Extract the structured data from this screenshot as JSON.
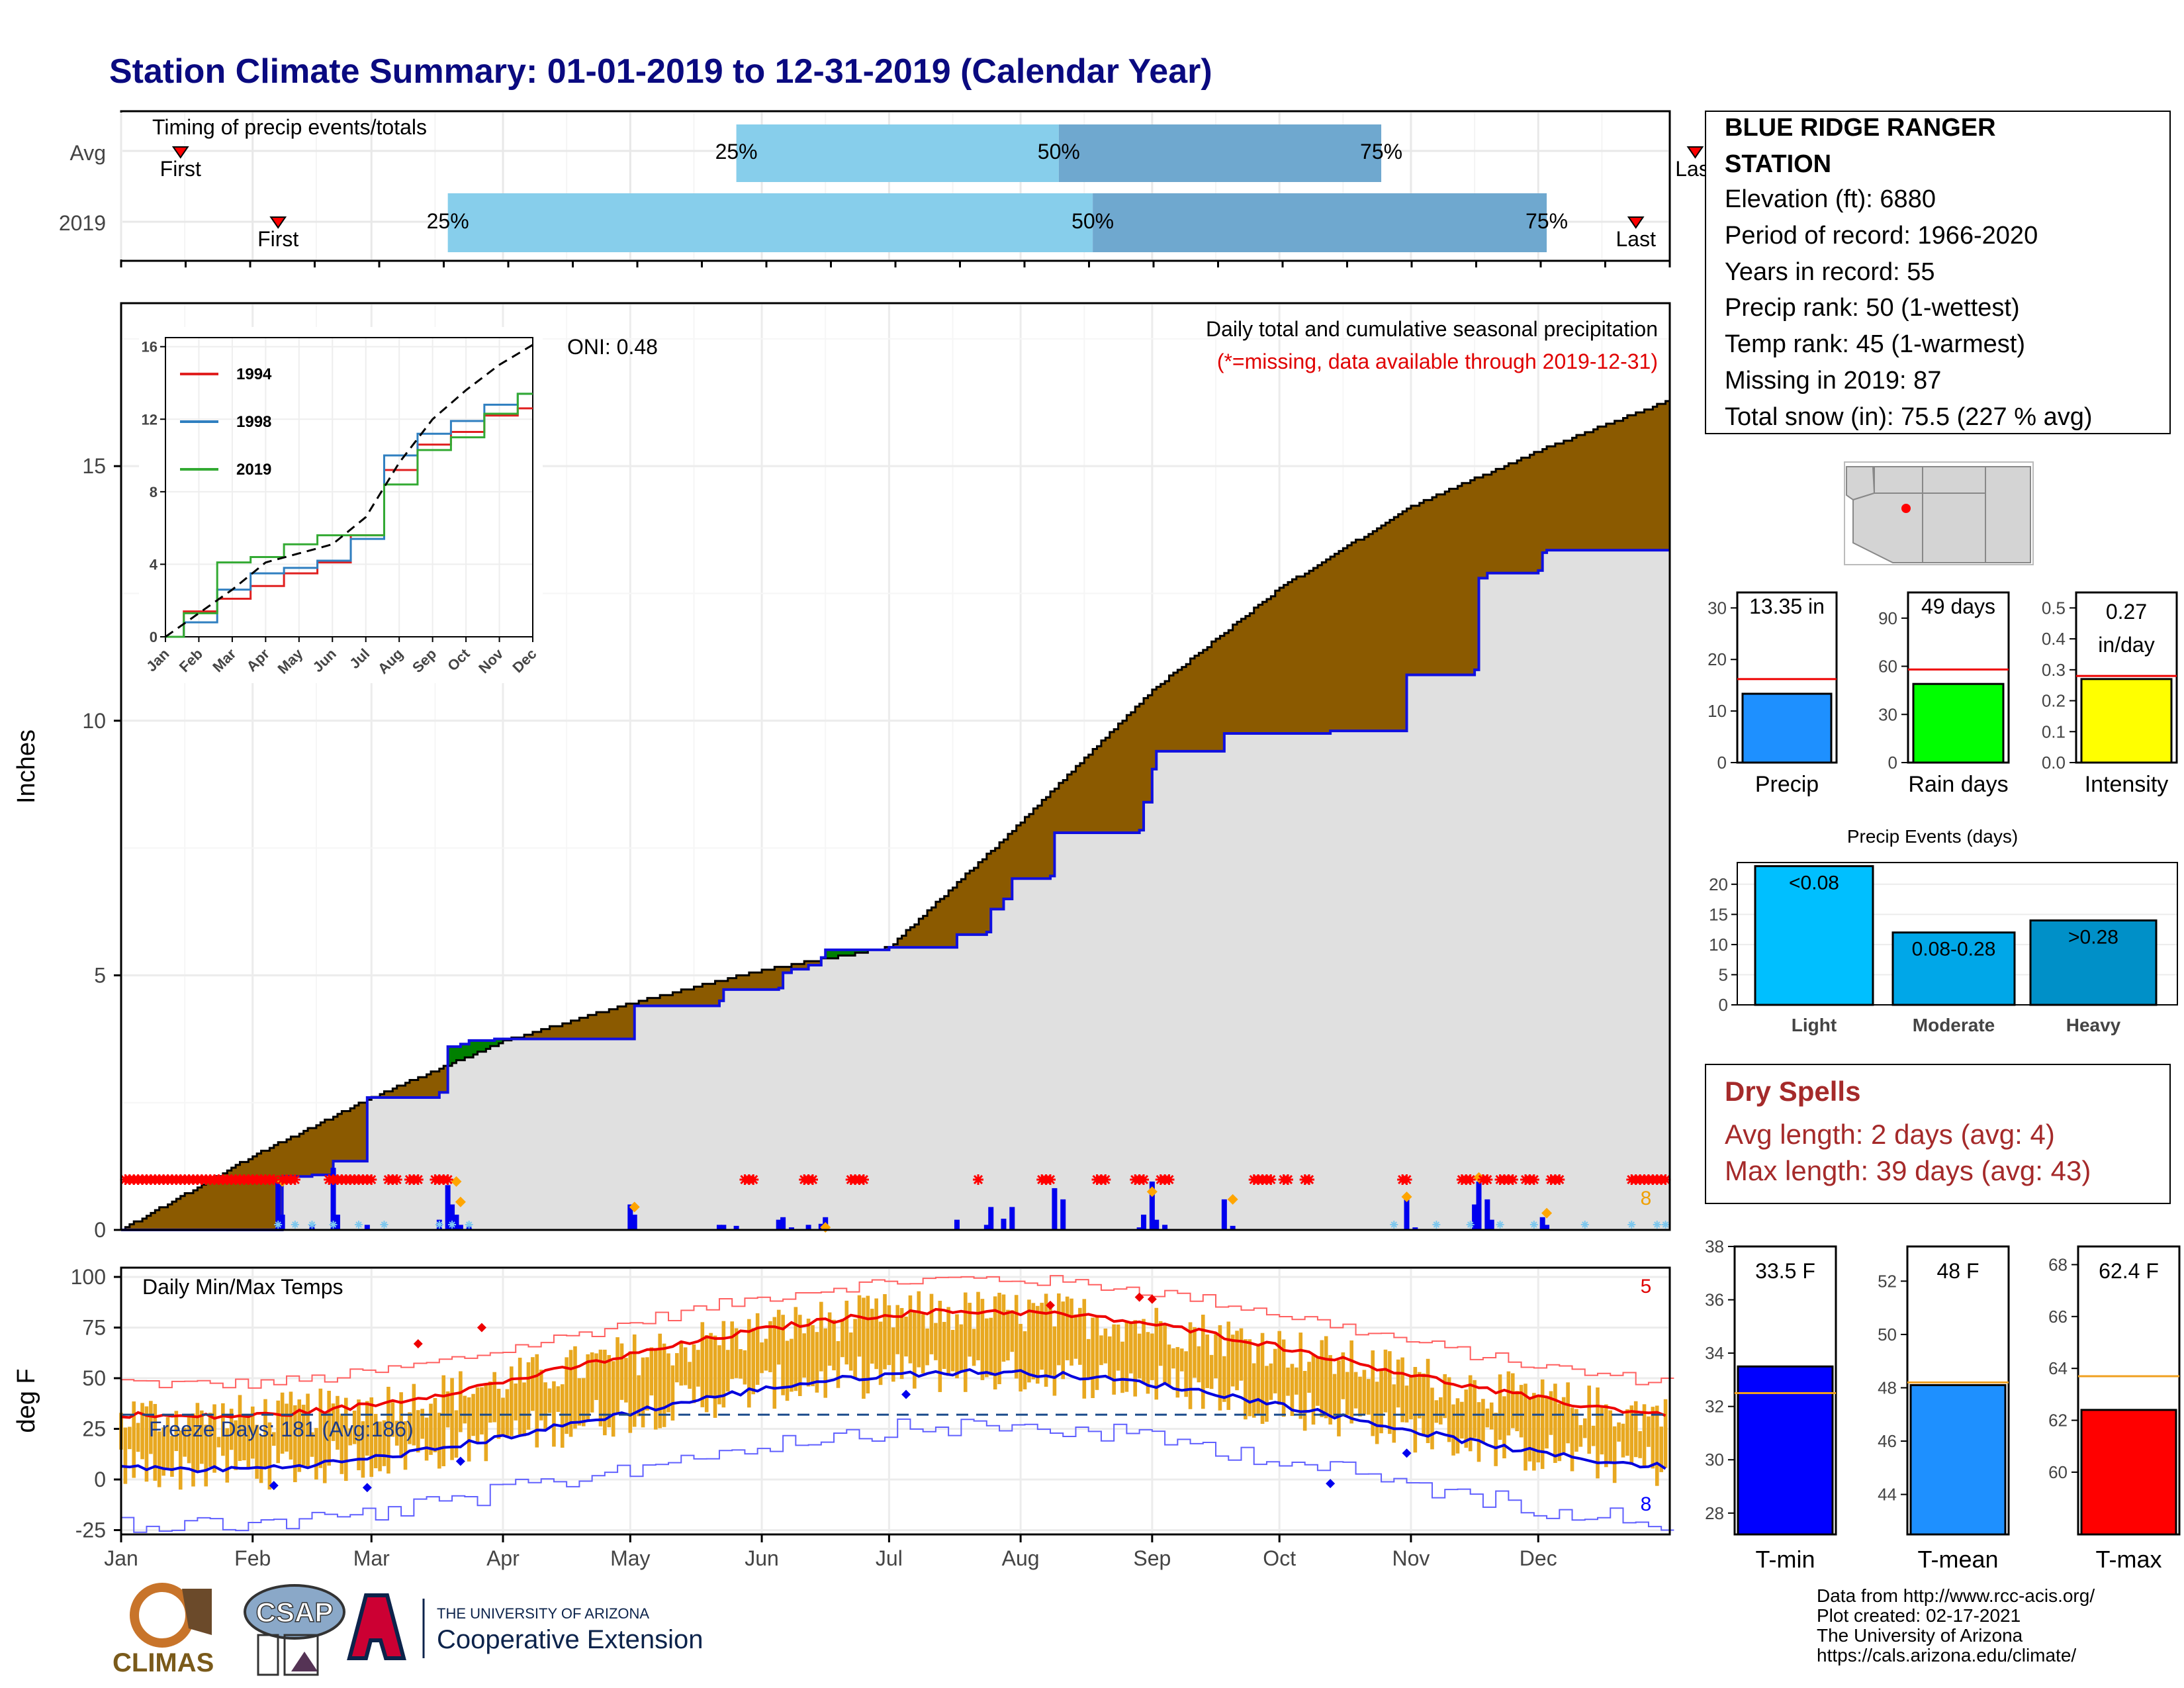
{
  "title": "Station Climate Summary: 01-01-2019 to 12-31-2019 (Calendar Year)",
  "colors": {
    "title": "#0a0a80",
    "cum_fill": "#8b5a00",
    "above_fill": "#008000",
    "avg_area": "#e0e0e0",
    "avg_line": "#1010e0",
    "q_light": "#87ceeb",
    "q_dark": "#6fa8cf",
    "precip_bar": "#1e90ff",
    "raindays_bar": "#00ff00",
    "intensity_bar": "#ffff00",
    "events_bar": "#00bfff",
    "tmin_bar": "#0000ff",
    "tmean_bar": "#1e90ff",
    "tmax_bar": "#ff0000",
    "temp_bar": "#e8a820",
    "dry_spells": "#a52a2a"
  },
  "timing": {
    "title": "Timing of precip events/totals",
    "rows": [
      {
        "label": "Avg",
        "first_label": "First",
        "last_label": "Last",
        "p25": "25%",
        "p50": "50%",
        "p75": "75%",
        "first_doy": 14,
        "q25_doy": 145,
        "q50_doy": 221,
        "q75_doy": 297,
        "last_doy": 371
      },
      {
        "label": "2019",
        "first_label": "First",
        "last_label": "Last",
        "p25": "25%",
        "p50": "50%",
        "p75": "75%",
        "first_doy": 37,
        "q25_doy": 77,
        "q50_doy": 229,
        "q75_doy": 336,
        "last_doy": 357
      }
    ]
  },
  "station": {
    "name_line1": "BLUE RIDGE RANGER",
    "name_line2": "STATION",
    "elevation": "Elevation (ft): 6880",
    "period": "Period of record: 1966-2020",
    "years": "Years in record: 55",
    "precip_rank": "Precip rank: 50 (1-wettest)",
    "temp_rank": "Temp rank: 45 (1-warmest)",
    "missing": "Missing in 2019: 87",
    "snow": "Total snow (in): 75.5 (227 % avg)"
  },
  "main_panel": {
    "ylabel": "Inches",
    "annotation1": "Daily total and cumulative seasonal precipitation",
    "annotation2": "(*=missing, data available through 2019-12-31)",
    "oni": "ONI: 0.48",
    "missing_count": "8"
  },
  "inset": {
    "series": [
      {
        "name": "1994",
        "color": "#e02020",
        "values": [
          0,
          1.4,
          2.1,
          2.8,
          3.5,
          4.1,
          5.6,
          9.2,
          10.6,
          11.3,
          12.2,
          12.6
        ]
      },
      {
        "name": "1998",
        "color": "#2f7fc0",
        "values": [
          0,
          0.8,
          2.6,
          3.5,
          3.8,
          4.2,
          5.4,
          10.0,
          11.2,
          11.9,
          12.8,
          13.4
        ]
      },
      {
        "name": "2019",
        "color": "#33aa33",
        "values": [
          0,
          1.3,
          4.1,
          4.4,
          5.1,
          5.6,
          5.6,
          8.4,
          10.3,
          11.0,
          12.3,
          13.4
        ]
      }
    ],
    "avg_values": [
      0,
      1.3,
      2.6,
      4.1,
      4.6,
      5.1,
      6.6,
      9.6,
      12.0,
      13.6,
      15.0,
      16.1
    ],
    "months": [
      "Jan",
      "Feb",
      "Mar",
      "Apr",
      "May",
      "Jun",
      "Jul",
      "Aug",
      "Sep",
      "Oct",
      "Nov",
      "Dec"
    ],
    "yticks": [
      "0",
      "4",
      "8",
      "12",
      "16"
    ]
  },
  "temp_panel": {
    "title": "Daily Min/Max Temps",
    "ylabel": "deg F",
    "freeze": "Freeze Days: 181 (Avg:186)",
    "max_missing": "5",
    "min_missing": "8",
    "freeze_line": 32
  },
  "months": [
    "Jan",
    "Feb",
    "Mar",
    "Apr",
    "May",
    "Jun",
    "Jul",
    "Aug",
    "Sep",
    "Oct",
    "Nov",
    "Dec"
  ],
  "summary_bars": [
    {
      "key": "precip",
      "label": "Precip",
      "value_text": "13.35 in",
      "value": 13.35,
      "avg": 16.2,
      "ymax": 33,
      "yticks": [
        "0",
        "10",
        "20",
        "30"
      ],
      "tickvals": [
        0,
        10,
        20,
        30
      ]
    },
    {
      "key": "raindays",
      "label": "Rain days",
      "value_text": "49 days",
      "value": 49,
      "avg": 58,
      "ymax": 106,
      "yticks": [
        "0",
        "30",
        "60",
        "90"
      ],
      "tickvals": [
        0,
        30,
        60,
        90
      ]
    },
    {
      "key": "intensity",
      "label": "Intensity",
      "value_text": "0.27",
      "value_text2": "in/day",
      "value": 0.27,
      "avg": 0.28,
      "ymax": 0.55,
      "yticks": [
        "0.0",
        "0.1",
        "0.2",
        "0.3",
        "0.4",
        "0.5"
      ],
      "tickvals": [
        0,
        0.1,
        0.2,
        0.3,
        0.4,
        0.5
      ]
    }
  ],
  "events": {
    "title": "Precip Events (days)",
    "categories": [
      "Light",
      "Moderate",
      "Heavy"
    ],
    "labels": [
      "<0.08",
      "0.08-0.28",
      ">0.28"
    ],
    "values": [
      23,
      12,
      14
    ],
    "yticks": [
      "0",
      "5",
      "10",
      "15",
      "20"
    ]
  },
  "dry_spells": {
    "title": "Dry Spells",
    "avg": "Avg length: 2 days (avg: 4)",
    "max": "Max length: 39 days (avg: 43)"
  },
  "temp_bars": [
    {
      "label": "T-min",
      "value_text": "33.5 F",
      "value": 33.5,
      "avg": 32.5,
      "ymin": 27.2,
      "ymax": 38.0,
      "tickvals": [
        28,
        30,
        32,
        34,
        36,
        38
      ]
    },
    {
      "label": "T-mean",
      "value_text": "48 F",
      "value": 48.1,
      "avg": 48.2,
      "ymin": 42.5,
      "ymax": 53.3,
      "tickvals": [
        44,
        46,
        48,
        50,
        52
      ]
    },
    {
      "label": "T-max",
      "value_text": "62.4 F",
      "value": 62.4,
      "avg": 63.7,
      "ymin": 57.6,
      "ymax": 68.7,
      "tickvals": [
        60,
        62,
        64,
        66,
        68
      ]
    }
  ],
  "credits": {
    "line1": "Data from http://www.rcc-acis.org/",
    "line2": "Plot created: 02-17-2021",
    "line3": "The University of Arizona",
    "line4": "https://cals.arizona.edu/climate/"
  },
  "logos": {
    "climas": "CLIMAS",
    "csap": "CSAP",
    "ua_small": "THE UNIVERSITY OF ARIZONA",
    "ua_big": "Cooperative Extension"
  }
}
